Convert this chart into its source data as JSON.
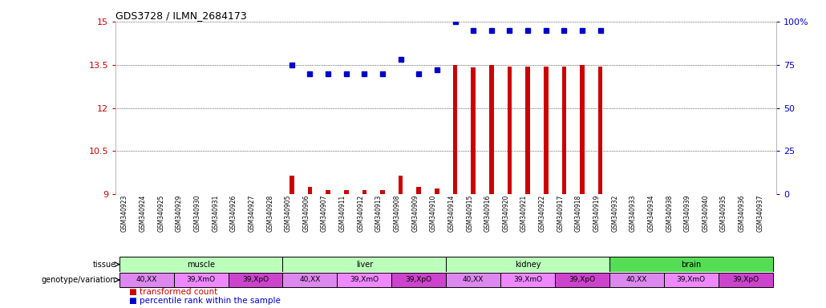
{
  "title": "GDS3728 / ILMN_2684173",
  "samples": [
    "GSM340923",
    "GSM340924",
    "GSM340925",
    "GSM340929",
    "GSM340930",
    "GSM340931",
    "GSM340926",
    "GSM340927",
    "GSM340928",
    "GSM340905",
    "GSM340906",
    "GSM340907",
    "GSM340911",
    "GSM340912",
    "GSM340913",
    "GSM340908",
    "GSM340909",
    "GSM340910",
    "GSM340914",
    "GSM340915",
    "GSM340916",
    "GSM340920",
    "GSM340921",
    "GSM340922",
    "GSM340917",
    "GSM340918",
    "GSM340919",
    "GSM340932",
    "GSM340933",
    "GSM340934",
    "GSM340938",
    "GSM340939",
    "GSM340940",
    "GSM340935",
    "GSM340936",
    "GSM340937"
  ],
  "transformed_count": [
    9.0,
    9.0,
    9.0,
    9.0,
    9.0,
    9.0,
    9.0,
    9.0,
    9.0,
    9.65,
    9.25,
    9.15,
    9.15,
    9.15,
    9.15,
    9.65,
    9.25,
    9.2,
    13.5,
    13.4,
    13.5,
    13.45,
    13.45,
    13.45,
    13.45,
    13.5,
    13.45,
    9.0,
    9.0,
    9.0,
    9.0,
    9.0,
    9.0,
    9.0,
    9.0,
    9.0
  ],
  "percentile_rank_pct": [
    null,
    null,
    null,
    null,
    null,
    null,
    null,
    null,
    null,
    75,
    70,
    70,
    70,
    70,
    70,
    78,
    70,
    72,
    100,
    95,
    95,
    95,
    95,
    95,
    95,
    95,
    95,
    null,
    null,
    null,
    null,
    null,
    null,
    null,
    null,
    null
  ],
  "ylim": [
    9.0,
    15.0
  ],
  "yticks": [
    9.0,
    10.5,
    12.0,
    13.5,
    15.0
  ],
  "ytick_labels": [
    "9",
    "10.5",
    "12",
    "13.5",
    "15"
  ],
  "y2ticks": [
    0,
    25,
    50,
    75,
    100
  ],
  "y2tick_labels": [
    "0",
    "25",
    "50",
    "75",
    "100%"
  ],
  "bar_color": "#cc0000",
  "dot_color": "#0000cc",
  "tissue_groups": [
    {
      "label": "muscle",
      "start": 0,
      "end": 8,
      "color": "#bbffbb"
    },
    {
      "label": "liver",
      "start": 9,
      "end": 17,
      "color": "#bbffbb"
    },
    {
      "label": "kidney",
      "start": 18,
      "end": 26,
      "color": "#bbffbb"
    },
    {
      "label": "brain",
      "start": 27,
      "end": 35,
      "color": "#55dd55"
    }
  ],
  "genotype_groups": [
    {
      "label": "40,XX",
      "start": 0,
      "end": 2,
      "color": "#dd88ee"
    },
    {
      "label": "39,XmO",
      "start": 3,
      "end": 5,
      "color": "#ee88ff"
    },
    {
      "label": "39,XpO",
      "start": 6,
      "end": 8,
      "color": "#cc44cc"
    },
    {
      "label": "40,XX",
      "start": 9,
      "end": 11,
      "color": "#dd88ee"
    },
    {
      "label": "39,XmO",
      "start": 12,
      "end": 14,
      "color": "#ee88ff"
    },
    {
      "label": "39,XpO",
      "start": 15,
      "end": 17,
      "color": "#cc44cc"
    },
    {
      "label": "40,XX",
      "start": 18,
      "end": 20,
      "color": "#dd88ee"
    },
    {
      "label": "39,XmO",
      "start": 21,
      "end": 23,
      "color": "#ee88ff"
    },
    {
      "label": "39,XpO",
      "start": 24,
      "end": 26,
      "color": "#cc44cc"
    },
    {
      "label": "40,XX",
      "start": 27,
      "end": 29,
      "color": "#dd88ee"
    },
    {
      "label": "39,XmO",
      "start": 30,
      "end": 32,
      "color": "#ee88ff"
    },
    {
      "label": "39,XpO",
      "start": 33,
      "end": 35,
      "color": "#cc44cc"
    }
  ]
}
